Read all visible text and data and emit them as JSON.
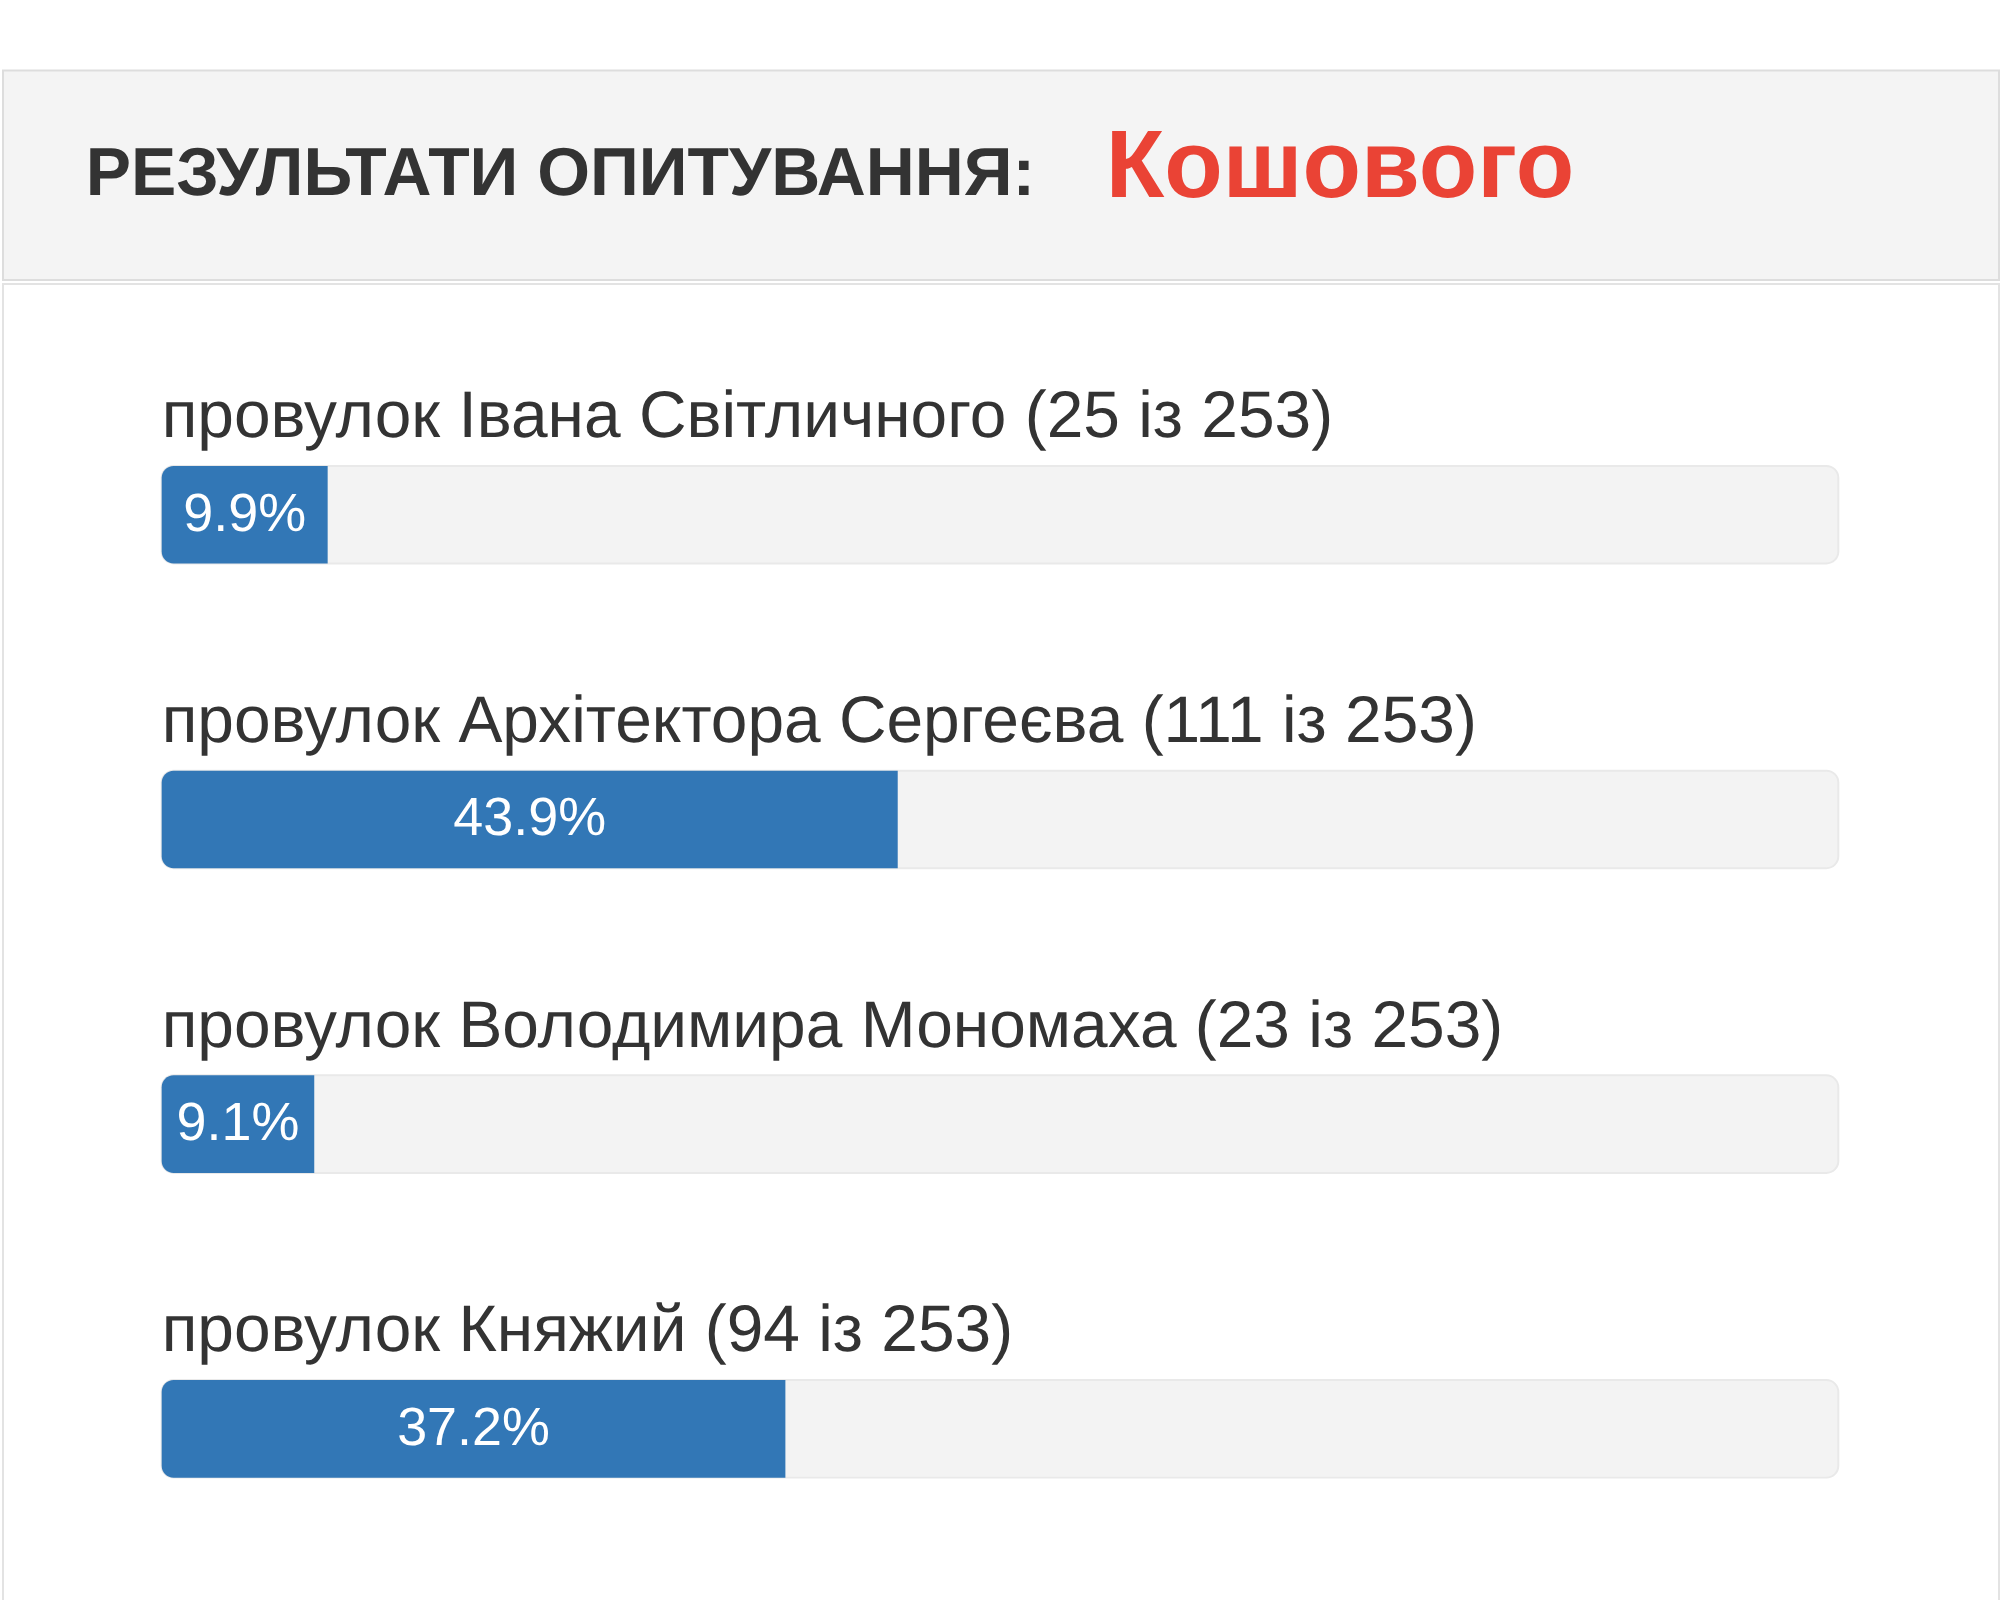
{
  "chart_data": {
    "type": "bar",
    "orientation": "horizontal",
    "title": "РЕЗУЛЬТАТИ ОПИТУВАННЯ:",
    "subtitle": "Кошового",
    "categories": [
      "провулок Івана Світличного (25 із 253)",
      "провулок Архітектора Сергеєва (111 із 253)",
      "провулок Володимира Мономаха (23 із 253)",
      "провулок Княжий (94 із 253)"
    ],
    "values": [
      9.9,
      43.9,
      9.1,
      37.2
    ],
    "value_labels": [
      "9.9%",
      "43.9%",
      "9.1%",
      "37.2%"
    ],
    "color": "#3277b6",
    "xlim": [
      0,
      100
    ],
    "tick_labels": "y"
  }
}
